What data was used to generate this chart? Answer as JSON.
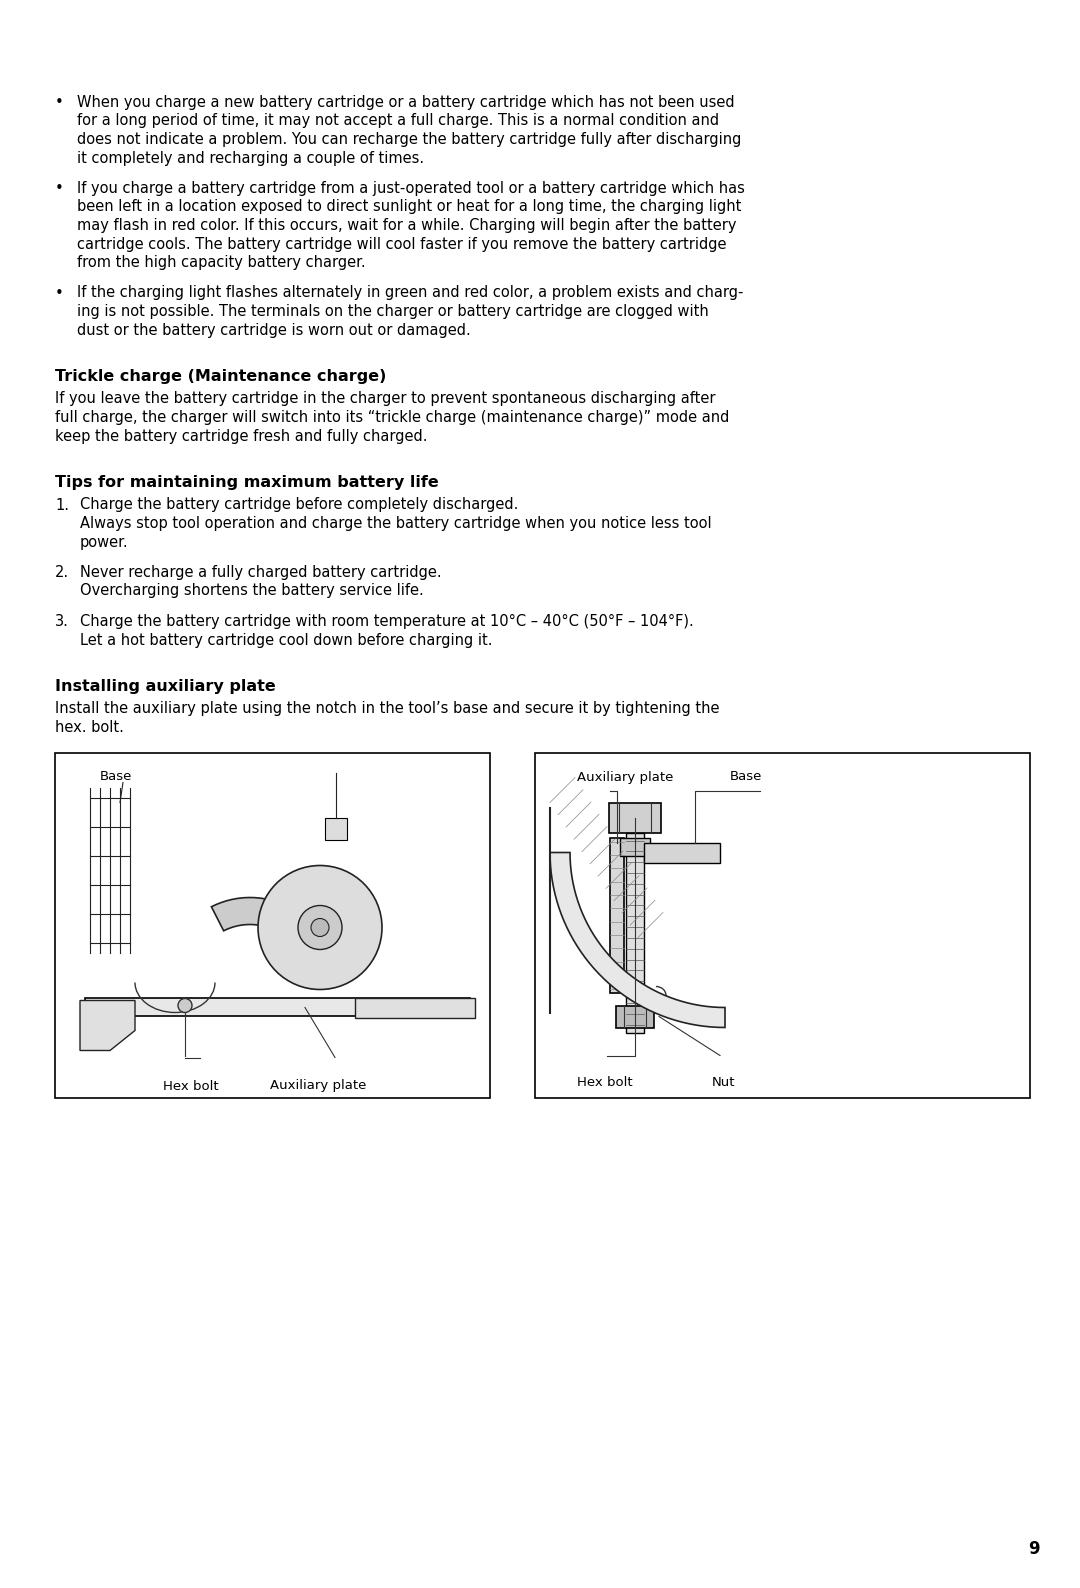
{
  "bg_color": "#ffffff",
  "text_color": "#000000",
  "page_number": "9",
  "bullet_points": [
    {
      "bullet": "•",
      "lines": [
        "When you charge a new battery cartridge or a battery cartridge which has not been used",
        "for a long period of time, it may not accept a full charge. This is a normal condition and",
        "does not indicate a problem. You can recharge the battery cartridge fully after discharging",
        "it completely and recharging a couple of times."
      ]
    },
    {
      "bullet": "•",
      "lines": [
        "If you charge a battery cartridge from a just-operated tool or a battery cartridge which has",
        "been left in a location exposed to direct sunlight or heat for a long time, the charging light",
        "may flash in red color. If this occurs, wait for a while. Charging will begin after the battery",
        "cartridge cools. The battery cartridge will cool faster if you remove the battery cartridge",
        "from the high capacity battery charger."
      ]
    },
    {
      "bullet": "•",
      "lines": [
        "If the charging light flashes alternately in green and red color, a problem exists and charg-",
        "ing is not possible. The terminals on the charger or battery cartridge are clogged with",
        "dust or the battery cartridge is worn out or damaged."
      ]
    }
  ],
  "section1_title": "Trickle charge (Maintenance charge)",
  "section1_body": [
    "If you leave the battery cartridge in the charger to prevent spontaneous discharging after",
    "full charge, the charger will switch into its “trickle charge (maintenance charge)” mode and",
    "keep the battery cartridge fresh and fully charged."
  ],
  "section2_title": "Tips for maintaining maximum battery life",
  "numbered_items": [
    {
      "num": "1.",
      "lines": [
        "Charge the battery cartridge before completely discharged.",
        "Always stop tool operation and charge the battery cartridge when you notice less tool",
        "power."
      ]
    },
    {
      "num": "2.",
      "lines": [
        "Never recharge a fully charged battery cartridge.",
        "Overcharging shortens the battery service life."
      ]
    },
    {
      "num": "3.",
      "lines": [
        "Charge the battery cartridge with room temperature at 10°C – 40°C (50°F – 104°F).",
        "Let a hot battery cartridge cool down before charging it."
      ]
    }
  ],
  "section3_title": "Installing auxiliary plate",
  "section3_body": [
    "Install the auxiliary plate using the notch in the tool’s base and secure it by tightening the",
    "hex. bolt."
  ],
  "fig1_labels": {
    "base": "Base",
    "hex_bolt": "Hex bolt",
    "aux_plate": "Auxiliary plate"
  },
  "fig2_labels": {
    "aux_plate": "Auxiliary plate",
    "base": "Base",
    "hex_bolt": "Hex bolt",
    "nut": "Nut"
  }
}
